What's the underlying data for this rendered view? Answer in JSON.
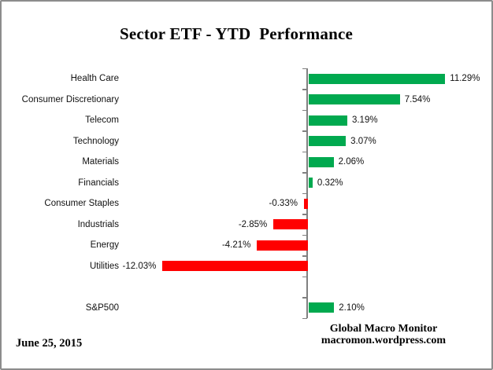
{
  "title": "Sector ETF - YTD  Performance",
  "date_label": "June 25, 2015",
  "credit": {
    "line1": "Global Macro Monitor",
    "line2": "macromon.wordpress.com"
  },
  "colors": {
    "positive": "#00A94F",
    "negative": "#FF0000",
    "axis": "#808080",
    "border": "#8C8C8C",
    "background": "#FFFFFF",
    "text": "#000000"
  },
  "chart_data": {
    "type": "bar",
    "orientation": "horizontal",
    "title": "Sector ETF - YTD  Performance",
    "xlabel": "",
    "ylabel": "",
    "xlim": [
      -13,
      13
    ],
    "grid": false,
    "legend": false,
    "value_format": "percent",
    "categories": [
      "Health Care",
      "Consumer Discretionary",
      "Telecom",
      "Technology",
      "Materials",
      "Financials",
      "Consumer Staples",
      "Industrials",
      "Energy",
      "Utilities",
      "S&P500"
    ],
    "values": [
      11.29,
      7.54,
      3.19,
      3.07,
      2.06,
      0.32,
      -0.33,
      -2.85,
      -4.21,
      -12.03,
      2.1
    ],
    "labels": [
      "11.29%",
      "7.54%",
      "3.19%",
      "3.07%",
      "2.06%",
      "0.32%",
      "-0.33%",
      "-2.85%",
      "-4.21%",
      "-12.03%",
      "2.10%"
    ],
    "benchmark_category": "S&P500",
    "spacer_before_last": true
  }
}
